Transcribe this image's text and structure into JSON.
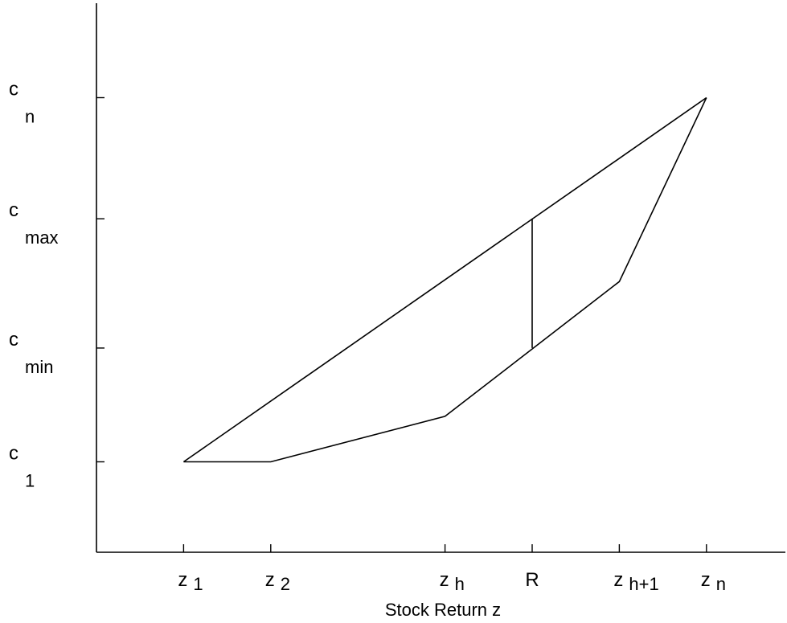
{
  "chart_data": {
    "type": "line",
    "title": "",
    "xlabel": "Stock Return z",
    "ylabel": "",
    "x_ticks": [
      {
        "id": "z1",
        "main": "z",
        "sub": "1",
        "value": 1
      },
      {
        "id": "z2",
        "main": "z",
        "sub": "2",
        "value": 2
      },
      {
        "id": "zh",
        "main": "z",
        "sub": "h",
        "value": 4
      },
      {
        "id": "R",
        "main": "R",
        "sub": "",
        "value": 5
      },
      {
        "id": "zh1",
        "main": "z",
        "sub": "h+1",
        "value": 6
      },
      {
        "id": "zn",
        "main": "z",
        "sub": "n",
        "value": 7
      }
    ],
    "y_ticks": [
      {
        "id": "c1",
        "main": "c",
        "sub": "1",
        "value": 1
      },
      {
        "id": "cmin",
        "main": "c",
        "sub": "min",
        "value": 2.25
      },
      {
        "id": "cmax",
        "main": "c",
        "sub": "max",
        "value": 3.67
      },
      {
        "id": "cn",
        "main": "c",
        "sub": "n",
        "value": 5
      }
    ],
    "xlim": [
      0,
      8
    ],
    "ylim": [
      0,
      5.7
    ],
    "grid": false,
    "series": [
      {
        "points": [
          {
            "x": 1,
            "y": 1
          },
          {
            "x": 7,
            "y": 5
          }
        ]
      },
      {
        "points": [
          {
            "x": 1,
            "y": 1
          },
          {
            "x": 2,
            "y": 1
          },
          {
            "x": 4,
            "y": 1.5
          },
          {
            "x": 6,
            "y": 2.98
          },
          {
            "x": 7,
            "y": 5
          }
        ]
      },
      {
        "points": [
          {
            "x": 5,
            "y": 2.25
          },
          {
            "x": 5,
            "y": 3.67
          }
        ]
      }
    ]
  }
}
